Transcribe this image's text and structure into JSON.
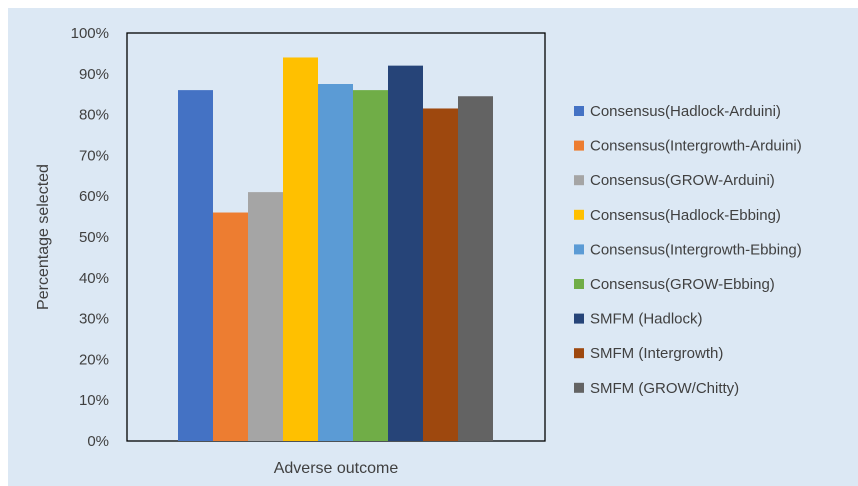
{
  "chart_data": {
    "type": "bar",
    "title": "",
    "xlabel": "Adverse outcome",
    "ylabel": "Percentage selected",
    "ylim": [
      0,
      100
    ],
    "y_ticks": [
      "0%",
      "10%",
      "20%",
      "30%",
      "40%",
      "50%",
      "60%",
      "70%",
      "80%",
      "90%",
      "100%"
    ],
    "grid": false,
    "legend_position": "right",
    "categories": [
      "Adverse outcome"
    ],
    "series": [
      {
        "name": "Consensus(Hadlock-Arduini)",
        "values": [
          86
        ],
        "color": "#4472c4"
      },
      {
        "name": "Consensus(Intergrowth-Arduini)",
        "values": [
          56
        ],
        "color": "#ed7d31"
      },
      {
        "name": "Consensus(GROW-Arduini)",
        "values": [
          61
        ],
        "color": "#a5a5a5"
      },
      {
        "name": "Consensus(Hadlock-Ebbing)",
        "values": [
          94
        ],
        "color": "#ffc000"
      },
      {
        "name": "Consensus(Intergrowth-Ebbing)",
        "values": [
          87.5
        ],
        "color": "#5b9bd5"
      },
      {
        "name": "Consensus(GROW-Ebbing)",
        "values": [
          86
        ],
        "color": "#70ad47"
      },
      {
        "name": "SMFM (Hadlock)",
        "values": [
          92
        ],
        "color": "#264478"
      },
      {
        "name": "SMFM (Intergrowth)",
        "values": [
          81.5
        ],
        "color": "#9e480e"
      },
      {
        "name": "SMFM (GROW/Chitty)",
        "values": [
          84.5
        ],
        "color": "#636363"
      }
    ]
  }
}
